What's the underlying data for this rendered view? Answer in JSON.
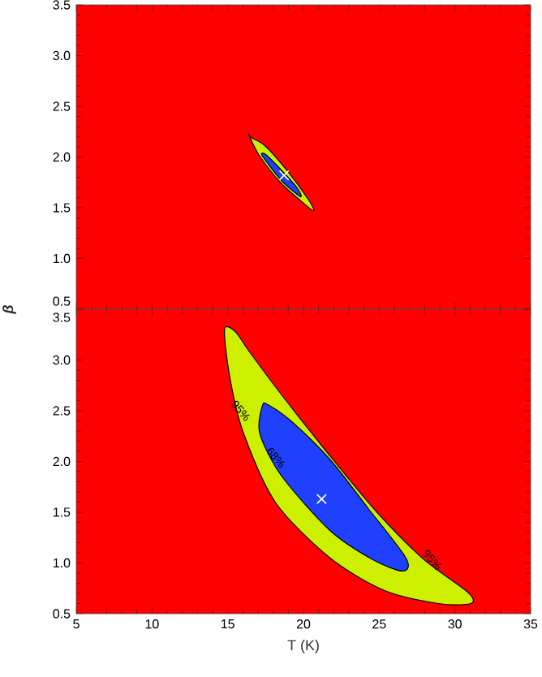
{
  "chart_data": [
    {
      "type": "area",
      "ylabel": "β",
      "xlim": [
        5,
        35
      ],
      "ylim": [
        0.5,
        3.5
      ],
      "tick_labels": "y",
      "xticks": [
        5,
        10,
        15,
        20,
        25,
        30,
        35
      ],
      "yticks": [
        {
          "value": 0.5,
          "label": "0.5"
        },
        {
          "value": 1.0,
          "label": "1.0"
        },
        {
          "value": 1.5,
          "label": "1.5"
        },
        {
          "value": 2.0,
          "label": "2.0"
        },
        {
          "value": 2.5,
          "label": "2.5"
        },
        {
          "value": 3.0,
          "label": "3.0"
        },
        {
          "value": 3.5,
          "label": "3.5"
        }
      ],
      "bands": [
        {
          "axis": "y",
          "from": 0.5,
          "to": 3.5,
          "color": "#ff0000"
        }
      ],
      "series": [
        {
          "color": "#ccf000",
          "x": [
            16.39,
            17.11,
            18.54,
            19.97,
            20.68,
            20.33,
            18.9,
            17.47,
            16.57
          ],
          "values": [
            2.22,
            2.01,
            1.74,
            1.55,
            1.47,
            1.58,
            1.87,
            2.11,
            2.19
          ]
        },
        {
          "color": "#2040ff",
          "x": [
            17.29,
            18.54,
            19.79,
            19.61,
            18.36,
            17.47
          ],
          "values": [
            2.01,
            1.77,
            1.61,
            1.69,
            1.9,
            2.03
          ]
        },
        {
          "type": "scatter",
          "marker": "cross",
          "color": "#ffffff",
          "x": [
            18.72
          ],
          "values": [
            1.82
          ]
        }
      ]
    },
    {
      "type": "area",
      "xlabel": "T (K)",
      "xlim": [
        5,
        35
      ],
      "ylim": [
        0.5,
        3.5
      ],
      "xticks": [
        5,
        10,
        15,
        20,
        25,
        30,
        35
      ],
      "yticks": [
        {
          "value": 0.5,
          "label": "0.5"
        },
        {
          "value": 1.0,
          "label": "1.0"
        },
        {
          "value": 1.5,
          "label": "1.5"
        },
        {
          "value": 2.0,
          "label": "2.0"
        },
        {
          "value": 2.5,
          "label": "2.5"
        },
        {
          "value": 3.0,
          "label": "3.0"
        },
        {
          "value": 3.5,
          "label": "3.5"
        }
      ],
      "bands": [
        {
          "axis": "y",
          "from": 0.5,
          "to": 3.5,
          "color": "#ff0000"
        }
      ],
      "annotations": [
        {
          "text": "95%",
          "x": 15.86,
          "y": 2.5
        },
        {
          "text": "68%",
          "x": 18.18,
          "y": 2.04
        },
        {
          "text": "95%",
          "x": 28.5,
          "y": 1.03
        }
      ],
      "series": [
        {
          "color": "#ccf000",
          "x": [
            14.79,
            15.15,
            16.04,
            18.18,
            21.75,
            25.33,
            28.9,
            31.04,
            30.86,
            27.83,
            24.61,
            21.4,
            18.54,
            16.39,
            15.5
          ],
          "values": [
            3.3,
            2.82,
            2.28,
            1.59,
            1.05,
            0.73,
            0.6,
            0.6,
            0.71,
            1.05,
            1.54,
            2.12,
            2.66,
            3.09,
            3.28
          ]
        },
        {
          "color": "#2040ff",
          "x": [
            17.29,
            17.11,
            18.54,
            21.75,
            24.61,
            26.58,
            26.76,
            24.26,
            21.75,
            19.25,
            17.65
          ],
          "values": [
            2.55,
            2.28,
            1.86,
            1.32,
            1.03,
            0.92,
            1.05,
            1.54,
            2.02,
            2.39,
            2.56
          ]
        },
        {
          "type": "scatter",
          "marker": "cross",
          "color": "#ffffff",
          "x": [
            21.2
          ],
          "values": [
            1.63
          ]
        }
      ]
    }
  ]
}
